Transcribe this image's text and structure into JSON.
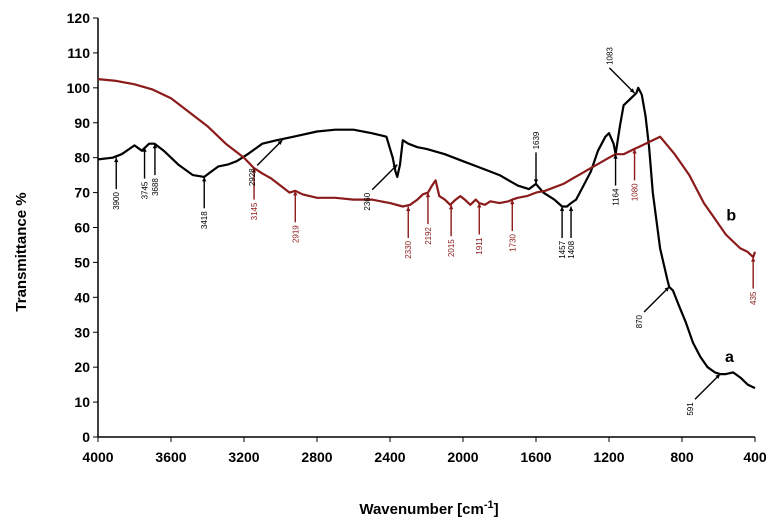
{
  "chart_data": {
    "type": "line",
    "xlabel": "Wavenumber [cm",
    "xlabel_sup": "-1",
    "xlabel_end": "]",
    "ylabel": "Transmittance %",
    "xlim": [
      4000,
      400
    ],
    "ylim": [
      0,
      120
    ],
    "x_ticks": [
      4000,
      3600,
      3200,
      2800,
      2400,
      2000,
      1600,
      1200,
      800,
      400
    ],
    "y_ticks": [
      0,
      10,
      20,
      30,
      40,
      50,
      60,
      70,
      80,
      90,
      100,
      110,
      120
    ],
    "grid": false,
    "colors": {
      "a": "#000000",
      "b": "#8b1a1a"
    },
    "series": [
      {
        "name": "a",
        "color": "#000000",
        "x": [
          4000,
          3920,
          3870,
          3800,
          3760,
          3720,
          3690,
          3640,
          3560,
          3480,
          3418,
          3380,
          3340,
          3290,
          3240,
          3180,
          3100,
          3020,
          2928,
          2800,
          2700,
          2600,
          2500,
          2420,
          2385,
          2370,
          2360,
          2345,
          2330,
          2300,
          2250,
          2200,
          2100,
          2000,
          1900,
          1800,
          1700,
          1639,
          1600,
          1560,
          1500,
          1457,
          1430,
          1408,
          1380,
          1340,
          1300,
          1260,
          1220,
          1200,
          1175,
          1164,
          1140,
          1120,
          1080,
          1050,
          1040,
          1020,
          1000,
          980,
          960,
          920,
          880,
          870,
          850,
          820,
          780,
          740,
          700,
          660,
          620,
          591,
          560,
          520,
          480,
          440,
          400
        ],
        "values": [
          79.5,
          80,
          81,
          83.5,
          82,
          84,
          84,
          82,
          78,
          75,
          74.5,
          76,
          77.5,
          78,
          79,
          81,
          84,
          85,
          86,
          87.5,
          88,
          88,
          87,
          86,
          80,
          76,
          74.5,
          78,
          85,
          84,
          83,
          82.5,
          81,
          79,
          77,
          75,
          72,
          71,
          72.5,
          70,
          68,
          66,
          66,
          67,
          68,
          72,
          76,
          82,
          86,
          87,
          84,
          81,
          89,
          95,
          97,
          98.5,
          100,
          98,
          92,
          83,
          70,
          54,
          45,
          43,
          42,
          38,
          33,
          27,
          23,
          20,
          18.5,
          18,
          18,
          18.5,
          17,
          15,
          14
        ]
      },
      {
        "name": "b",
        "color": "#8b1a1a",
        "x": [
          4000,
          3900,
          3800,
          3700,
          3600,
          3500,
          3400,
          3300,
          3200,
          3145,
          3100,
          3050,
          3000,
          2950,
          2919,
          2880,
          2800,
          2700,
          2600,
          2500,
          2400,
          2330,
          2290,
          2250,
          2220,
          2192,
          2170,
          2150,
          2130,
          2100,
          2070,
          2040,
          2015,
          1990,
          1960,
          1930,
          1911,
          1880,
          1850,
          1800,
          1750,
          1730,
          1700,
          1650,
          1600,
          1550,
          1500,
          1450,
          1400,
          1350,
          1300,
          1250,
          1200,
          1164,
          1120,
          1060,
          1040,
          1000,
          960,
          920,
          880,
          840,
          800,
          760,
          720,
          680,
          640,
          600,
          560,
          520,
          480,
          440,
          420,
          410,
          400
        ],
        "values": [
          102.5,
          102,
          101,
          99.5,
          97,
          93,
          89,
          84,
          80,
          77,
          75.5,
          74,
          72,
          70,
          70.5,
          69.5,
          68.5,
          68.5,
          68,
          68,
          67,
          66,
          66.5,
          68,
          69.5,
          70,
          72,
          73.5,
          69,
          68,
          66.5,
          68,
          69,
          68,
          66.5,
          68,
          67,
          66.5,
          67.5,
          67,
          67.5,
          68,
          68.5,
          69,
          70,
          70.5,
          71.5,
          72.5,
          74,
          75.5,
          77,
          78.5,
          80,
          81,
          81,
          82.5,
          83,
          84,
          85,
          86,
          83.5,
          81,
          78,
          75,
          71,
          67,
          64,
          61,
          58,
          56,
          54,
          53,
          52,
          51.5,
          53
        ]
      }
    ],
    "series_labels": [
      {
        "text": "a",
        "x": 540,
        "y": 21.5,
        "series": "a"
      },
      {
        "text": "b",
        "x": 530,
        "y": 62,
        "series": "b"
      }
    ],
    "annotations": [
      {
        "text": "3900",
        "x": 3900,
        "y": 80,
        "color": "#000000",
        "dir": "up",
        "len": 9
      },
      {
        "text": "3745",
        "x": 3745,
        "y": 83,
        "color": "#000000",
        "dir": "up",
        "len": 9
      },
      {
        "text": "3688",
        "x": 3688,
        "y": 84,
        "color": "#000000",
        "dir": "up",
        "len": 9
      },
      {
        "text": "3418",
        "x": 3418,
        "y": 74.5,
        "color": "#000000",
        "dir": "up",
        "len": 9
      },
      {
        "text": "3145",
        "x": 3145,
        "y": 77,
        "color": "#8b1a1a",
        "dir": "up",
        "len": 9
      },
      {
        "text": "2919",
        "x": 2919,
        "y": 70.5,
        "color": "#8b1a1a",
        "dir": "up",
        "len": 9
      },
      {
        "text": "2928",
        "x": 2990,
        "y": 85,
        "color": "#000000",
        "dir": "downleft",
        "len": 8
      },
      {
        "text": "2360",
        "x": 2360,
        "y": 78,
        "color": "#000000",
        "dir": "downleft",
        "len": 8
      },
      {
        "text": "2330",
        "x": 2300,
        "y": 66,
        "color": "#8b1a1a",
        "dir": "up",
        "len": 9
      },
      {
        "text": "2192",
        "x": 2192,
        "y": 70,
        "color": "#8b1a1a",
        "dir": "up",
        "len": 9
      },
      {
        "text": "2015",
        "x": 2065,
        "y": 66.5,
        "color": "#8b1a1a",
        "dir": "up",
        "len": 9
      },
      {
        "text": "1911",
        "x": 1911,
        "y": 67,
        "color": "#8b1a1a",
        "dir": "up",
        "len": 9
      },
      {
        "text": "1730",
        "x": 1730,
        "y": 68,
        "color": "#8b1a1a",
        "dir": "up",
        "len": 9
      },
      {
        "text": "1639",
        "x": 1600,
        "y": 72.5,
        "color": "#000000",
        "dir": "down",
        "len": 9
      },
      {
        "text": "1457",
        "x": 1457,
        "y": 66,
        "color": "#000000",
        "dir": "up",
        "len": 9
      },
      {
        "text": "1408",
        "x": 1408,
        "y": 66,
        "color": "#000000",
        "dir": "up",
        "len": 9
      },
      {
        "text": "1164",
        "x": 1164,
        "y": 81,
        "color": "#000000",
        "dir": "up",
        "len": 9
      },
      {
        "text": "1080",
        "x": 1060,
        "y": 82.5,
        "color": "#8b1a1a",
        "dir": "up",
        "len": 9
      },
      {
        "text": "1083",
        "x": 1060,
        "y": 98.5,
        "color": "#000000",
        "dir": "downright",
        "len": 8
      },
      {
        "text": "870",
        "x": 870,
        "y": 43,
        "color": "#000000",
        "dir": "downleft",
        "len": 8
      },
      {
        "text": "591",
        "x": 591,
        "y": 18,
        "color": "#000000",
        "dir": "downleft",
        "len": 8
      },
      {
        "text": "435",
        "x": 410,
        "y": 51.5,
        "color": "#8b1a1a",
        "dir": "up",
        "len": 9
      }
    ]
  }
}
